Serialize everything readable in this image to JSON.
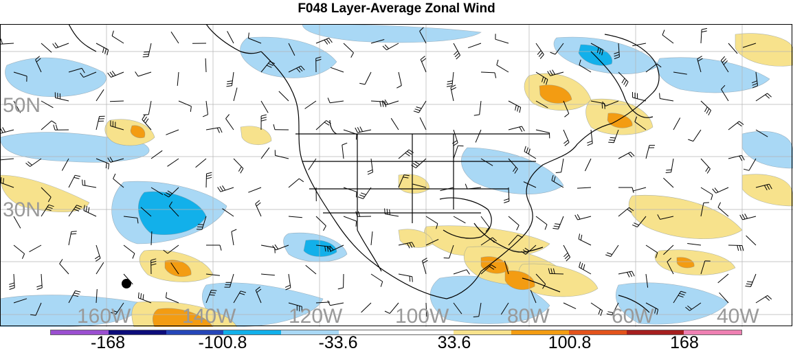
{
  "title": "F048 Layer-Average Zonal Wind",
  "lon_labels": [
    "160W",
    "140W",
    "120W",
    "100W",
    "80W",
    "60W",
    "40W"
  ],
  "lat_labels": [
    "50N",
    "30N"
  ],
  "colorbar": {
    "colors": [
      "#9a4fd0",
      "#0d0d7a",
      "#2546b8",
      "#12b0ea",
      "#a9d8f5",
      "#ffffff",
      "#ffffff",
      "#f7e28c",
      "#f39c12",
      "#e2531c",
      "#a51f1f",
      "#ee80b2"
    ],
    "labels": [
      "-168",
      "-100.8",
      "-33.6",
      "33.6",
      "100.8",
      "168"
    ]
  },
  "palette": {
    "light_blue": "#a9d8f5",
    "mid_blue": "#12b0ea",
    "light_yellow": "#f7e28c",
    "orange": "#f39c12",
    "grid": "#b4b4b4",
    "coast": "#000000"
  }
}
